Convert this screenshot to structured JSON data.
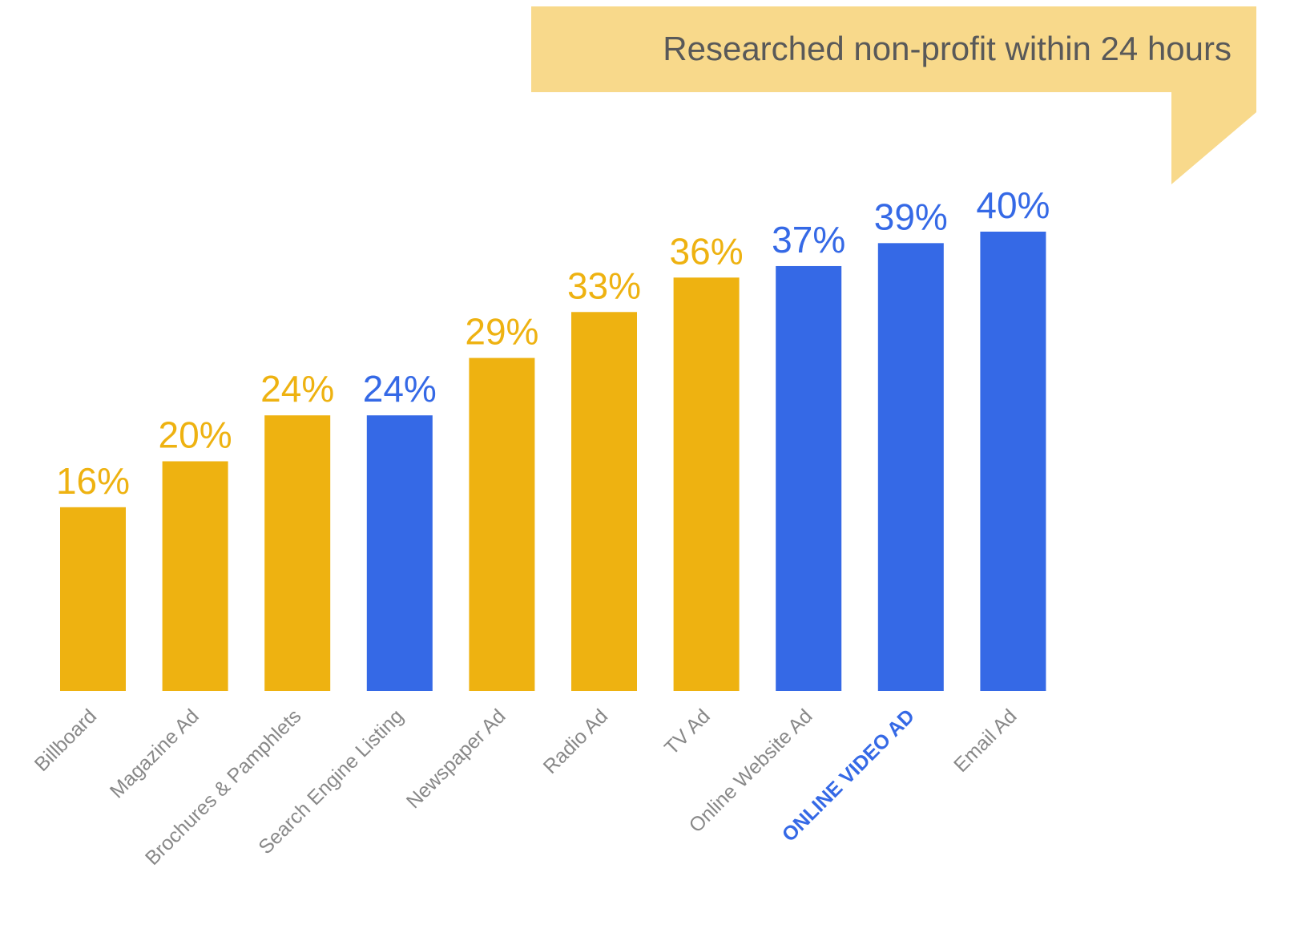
{
  "chart_data": {
    "type": "bar",
    "title": "Researched non-profit within 24 hours",
    "categories": [
      "Billboard",
      "Magazine Ad",
      "Brochures & Pamphlets",
      "Search Engine Listing",
      "Newspaper Ad",
      "Radio Ad",
      "TV Ad",
      "Online Website Ad",
      "ONLINE VIDEO AD",
      "Email Ad"
    ],
    "values": [
      16,
      20,
      24,
      24,
      29,
      33,
      36,
      37,
      39,
      40
    ],
    "value_labels": [
      "16%",
      "20%",
      "24%",
      "24%",
      "29%",
      "33%",
      "36%",
      "37%",
      "39%",
      "40%"
    ],
    "colors": [
      "#eeb211",
      "#eeb211",
      "#eeb211",
      "#3569e6",
      "#eeb211",
      "#eeb211",
      "#eeb211",
      "#3569e6",
      "#3569e6",
      "#3569e6"
    ],
    "category_colors": [
      "#888888",
      "#888888",
      "#888888",
      "#888888",
      "#888888",
      "#888888",
      "#888888",
      "#888888",
      "#3569e6",
      "#888888"
    ],
    "category_font_weights": [
      "normal",
      "normal",
      "normal",
      "normal",
      "normal",
      "normal",
      "normal",
      "normal",
      "bold",
      "normal"
    ],
    "ylim": [
      0,
      40
    ]
  }
}
